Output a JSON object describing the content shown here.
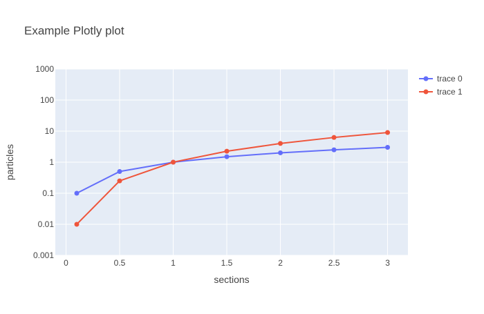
{
  "chart_data": {
    "type": "line",
    "title": "Example Plotly plot",
    "xlabel": "sections",
    "ylabel": "particles",
    "x_ticks": [
      "0",
      "0.5",
      "1",
      "1.5",
      "2",
      "2.5",
      "3"
    ],
    "y_ticks": [
      "0.001",
      "0.01",
      "0.1",
      "1",
      "10",
      "100",
      "1000"
    ],
    "x_range": [
      -0.1,
      3.19
    ],
    "y_scale": "log",
    "y_range": [
      0.001,
      1000
    ],
    "grid": true,
    "legend_position": "top-right",
    "series": [
      {
        "name": "trace 0",
        "color": "#636efa",
        "x": [
          0.1,
          0.5,
          1,
          1.5,
          2,
          2.5,
          3
        ],
        "y": [
          0.1,
          0.5,
          1,
          1.5,
          2,
          2.5,
          3
        ]
      },
      {
        "name": "trace 1",
        "color": "#ef553b",
        "x": [
          0.1,
          0.5,
          1,
          1.5,
          2,
          2.5,
          3
        ],
        "y": [
          0.01,
          0.25,
          1,
          2.25,
          4,
          6.25,
          9
        ]
      }
    ]
  }
}
